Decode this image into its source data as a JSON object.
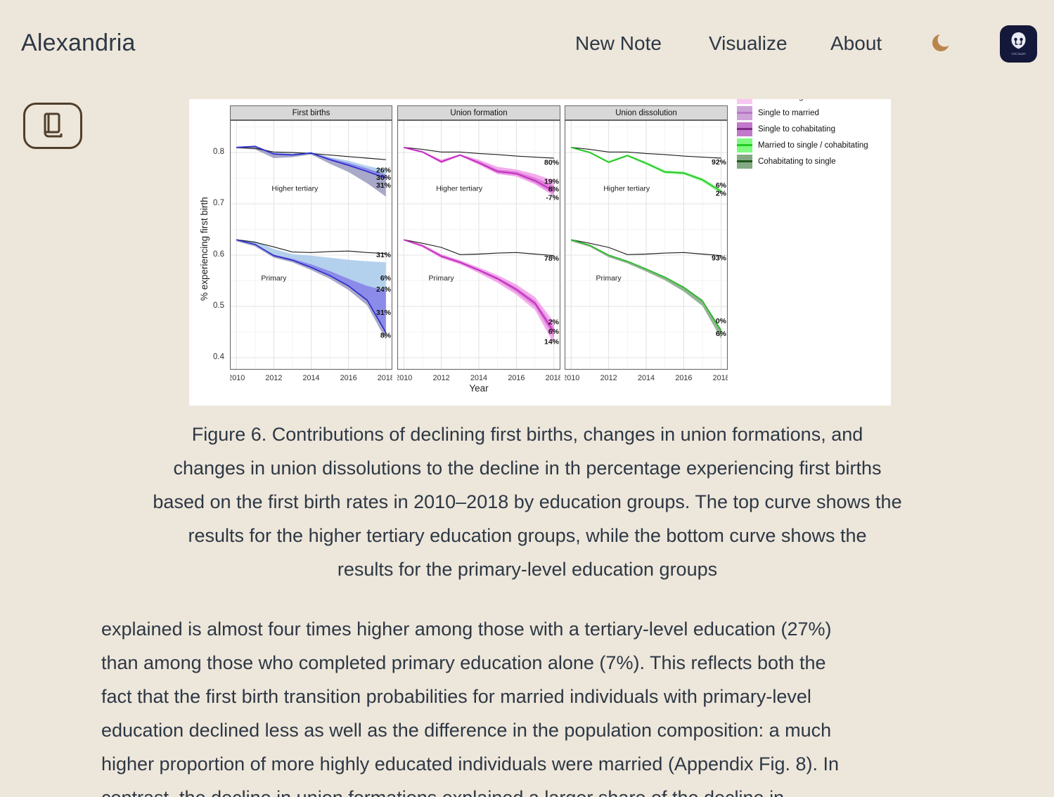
{
  "header": {
    "logo": "Alexandria",
    "nav": [
      {
        "label": "New Note"
      },
      {
        "label": "Visualize"
      },
      {
        "label": "About"
      }
    ],
    "avatar_label": "GitCitadel"
  },
  "colors": {
    "page_bg": "#EDE6DA",
    "text": "#2D3845",
    "moon": "#B9854C",
    "avatar_bg": "#14183A",
    "book_button": "#4F3F2B",
    "figure_bg": "#FFFFFF"
  },
  "caption_lines": [
    "Figure 6. Contributions of declining first births, changes in union formations, and",
    "changes in union dissolutions to the decline in th percentage experiencing first births",
    "based on the first birth rates in 2010–2018 by education groups. The top curve shows the",
    "results for the higher tertiary education groups, while the bottom curve shows the",
    "results for the primary-level education groups"
  ],
  "paragraph_lines": [
    "explained is almost four times higher among those with a tertiary-level education (27%)",
    "than among those who completed primary education alone (7%). This reflects both the",
    "fact that the first birth transition probabilities for married individuals with primary-level",
    "education declined less as well as the difference in the population composition: a much",
    "higher proportion of more highly educated individuals were married (Appendix Fig. 8). In"
  ],
  "paragraph_partial": "contrast, the decline in union formations explained a larger share of the decline in",
  "chart_data": {
    "type": "line",
    "x": [
      2010,
      2011,
      2012,
      2013,
      2014,
      2015,
      2016,
      2017,
      2018
    ],
    "x_ticks": [
      2010,
      2012,
      2014,
      2016,
      2018
    ],
    "y_ticks": [
      0.8,
      0.7,
      0.6,
      0.5,
      0.4
    ],
    "ylim": [
      0.377,
      0.863
    ],
    "ylabel": "% experiencing first birth",
    "xlabel": "Year",
    "grid": true,
    "legend_position": "top-right-outside",
    "legend": [
      {
        "label": "Cohabitating to married",
        "fill": "#F8C7F1",
        "line": "#EE86EA"
      },
      {
        "label": "Single to married",
        "fill": "#CDA4D8",
        "line": "#B978C8"
      },
      {
        "label": "Single to cohabitating",
        "fill": "#C379CB",
        "line": "#7E2D87"
      },
      {
        "label": "Married to single / cohabitating",
        "fill": "#7FF97F",
        "line": "#21CC21"
      },
      {
        "label": "Cohabitating to single",
        "fill": "#83A983",
        "line": "#1E5B1E"
      }
    ],
    "panels": [
      {
        "title": "First births",
        "groups": [
          {
            "name": "Higher tertiary",
            "label_pos": {
              "fx": 0.4,
              "v": 0.731
            },
            "black": [
              0.81,
              0.808,
              0.801,
              0.8,
              0.798,
              0.795,
              0.792,
              0.789,
              0.786
            ],
            "bands": [
              {
                "fill": "#A9CBEA",
                "upper": [
                  0.811,
                  0.813,
                  0.8,
                  0.798,
                  0.801,
                  0.791,
                  0.784,
                  0.774,
                  0.766
                ],
                "lower": [
                  0.81,
                  0.812,
                  0.799,
                  0.797,
                  0.8,
                  0.789,
                  0.78,
                  0.769,
                  0.757
                ]
              },
              {
                "fill": "#7B7BE6",
                "upper": [
                  0.81,
                  0.812,
                  0.799,
                  0.797,
                  0.8,
                  0.789,
                  0.78,
                  0.769,
                  0.757
                ],
                "lower": [
                  0.81,
                  0.812,
                  0.797,
                  0.795,
                  0.799,
                  0.786,
                  0.775,
                  0.763,
                  0.75
                ]
              },
              {
                "fill": "#9C9CC2",
                "upper": [
                  0.81,
                  0.812,
                  0.797,
                  0.795,
                  0.799,
                  0.786,
                  0.775,
                  0.763,
                  0.75
                ],
                "lower": [
                  0.808,
                  0.806,
                  0.789,
                  0.791,
                  0.796,
                  0.778,
                  0.762,
                  0.74,
                  0.714
                ]
              }
            ],
            "line": {
              "color": "#2929CC",
              "values": [
                0.81,
                0.812,
                0.797,
                0.795,
                0.799,
                0.786,
                0.775,
                0.763,
                0.75
              ]
            },
            "labels": [
              {
                "text": "26%",
                "v": 0.766
              },
              {
                "text": "30%",
                "v": 0.752
              },
              {
                "text": "31%",
                "v": 0.737
              }
            ]
          },
          {
            "name": "Primary",
            "label_pos": {
              "fx": 0.27,
              "v": 0.556
            },
            "black": [
              0.63,
              0.625,
              0.616,
              0.606,
              0.605,
              0.607,
              0.608,
              0.605,
              0.603
            ],
            "bands": [
              {
                "fill": "#A9CBEA",
                "upper": [
                  0.631,
                  0.627,
                  0.612,
                  0.602,
                  0.599,
                  0.595,
                  0.591,
                  0.588,
                  0.586
                ],
                "lower": [
                  0.629,
                  0.622,
                  0.601,
                  0.593,
                  0.582,
                  0.569,
                  0.554,
                  0.54,
                  0.531
                ]
              },
              {
                "fill": "#7B7BE6",
                "upper": [
                  0.629,
                  0.622,
                  0.601,
                  0.593,
                  0.582,
                  0.569,
                  0.554,
                  0.54,
                  0.531
                ],
                "lower": [
                  0.63,
                  0.621,
                  0.599,
                  0.59,
                  0.576,
                  0.56,
                  0.54,
                  0.512,
                  0.449
                ]
              },
              {
                "fill": "#9C9CC2",
                "upper": [
                  0.63,
                  0.621,
                  0.599,
                  0.59,
                  0.576,
                  0.56,
                  0.54,
                  0.512,
                  0.449
                ],
                "lower": [
                  0.627,
                  0.617,
                  0.595,
                  0.586,
                  0.571,
                  0.554,
                  0.532,
                  0.502,
                  0.435
                ]
              }
            ],
            "line": {
              "color": "#2929CC",
              "values": [
                0.63,
                0.621,
                0.599,
                0.59,
                0.576,
                0.56,
                0.54,
                0.512,
                0.449
              ]
            },
            "labels": [
              {
                "text": "31%",
                "v": 0.601
              },
              {
                "text": "6%",
                "v": 0.556
              },
              {
                "text": "24%",
                "v": 0.534
              },
              {
                "text": "31%",
                "v": 0.489
              },
              {
                "text": "8%",
                "v": 0.444
              }
            ]
          }
        ]
      },
      {
        "title": "Union formation",
        "groups": [
          {
            "name": "Higher tertiary",
            "label_pos": {
              "fx": 0.38,
              "v": 0.731
            },
            "black": [
              0.81,
              0.806,
              0.801,
              0.801,
              0.798,
              0.796,
              0.793,
              0.791,
              0.789
            ],
            "bands": [
              {
                "fill": "#F1A0EB",
                "upper": [
                  0.811,
                  0.803,
                  0.786,
                  0.797,
                  0.786,
                  0.772,
                  0.767,
                  0.758,
                  0.745
                ],
                "lower": [
                  0.808,
                  0.799,
                  0.779,
                  0.793,
                  0.776,
                  0.758,
                  0.753,
                  0.738,
                  0.715
                ]
              },
              {
                "fill": "#DB79D5",
                "upper": [
                  0.81,
                  0.802,
                  0.784,
                  0.796,
                  0.783,
                  0.767,
                  0.763,
                  0.751,
                  0.735
                ],
                "lower": [
                  0.809,
                  0.8,
                  0.78,
                  0.794,
                  0.778,
                  0.76,
                  0.756,
                  0.741,
                  0.719
                ]
              }
            ],
            "line": {
              "color": "#C024C0",
              "values": [
                0.81,
                0.801,
                0.782,
                0.795,
                0.78,
                0.763,
                0.759,
                0.745,
                0.725
              ]
            },
            "labels": [
              {
                "text": "80%",
                "v": 0.781
              },
              {
                "text": "19%",
                "v": 0.744
              },
              {
                "text": "8%",
                "v": 0.729
              },
              {
                "text": "-7%",
                "v": 0.713
              }
            ]
          },
          {
            "name": "Primary",
            "label_pos": {
              "fx": 0.27,
              "v": 0.556
            },
            "black": [
              0.63,
              0.623,
              0.615,
              0.601,
              0.602,
              0.604,
              0.605,
              0.602,
              0.599
            ],
            "bands": [
              {
                "fill": "#F1A0EB",
                "upper": [
                  0.631,
                  0.621,
                  0.602,
                  0.59,
                  0.576,
                  0.561,
                  0.543,
                  0.518,
                  0.47
                ],
                "lower": [
                  0.628,
                  0.615,
                  0.594,
                  0.582,
                  0.565,
                  0.546,
                  0.523,
                  0.493,
                  0.427
                ]
              },
              {
                "fill": "#DB79D5",
                "upper": [
                  0.63,
                  0.619,
                  0.6,
                  0.588,
                  0.573,
                  0.557,
                  0.537,
                  0.511,
                  0.459
                ],
                "lower": [
                  0.629,
                  0.617,
                  0.596,
                  0.584,
                  0.568,
                  0.551,
                  0.528,
                  0.5,
                  0.44
                ]
              }
            ],
            "line": {
              "color": "#C024C0",
              "values": [
                0.63,
                0.618,
                0.598,
                0.586,
                0.571,
                0.554,
                0.533,
                0.506,
                0.45
              ]
            },
            "labels": [
              {
                "text": "78%",
                "v": 0.594
              },
              {
                "text": "2%",
                "v": 0.47
              },
              {
                "text": "6%",
                "v": 0.452
              },
              {
                "text": "14%",
                "v": 0.432
              }
            ]
          }
        ]
      },
      {
        "title": "Union dissolution",
        "groups": [
          {
            "name": "Higher tertiary",
            "label_pos": {
              "fx": 0.38,
              "v": 0.731
            },
            "black": [
              0.81,
              0.806,
              0.801,
              0.801,
              0.798,
              0.796,
              0.793,
              0.791,
              0.789
            ],
            "bands": [
              {
                "fill": "#90FA90",
                "upper": [
                  0.811,
                  0.802,
                  0.784,
                  0.796,
                  0.782,
                  0.765,
                  0.763,
                  0.75,
                  0.728
                ],
                "lower": [
                  0.808,
                  0.798,
                  0.779,
                  0.792,
                  0.776,
                  0.759,
                  0.757,
                  0.743,
                  0.719
                ]
              }
            ],
            "line": {
              "color": "#22BB22",
              "values": [
                0.81,
                0.8,
                0.781,
                0.794,
                0.779,
                0.762,
                0.76,
                0.747,
                0.724
              ]
            },
            "labels": [
              {
                "text": "92%",
                "v": 0.782
              },
              {
                "text": "6%",
                "v": 0.737
              },
              {
                "text": "2%",
                "v": 0.721
              }
            ]
          },
          {
            "name": "Primary",
            "label_pos": {
              "fx": 0.27,
              "v": 0.556
            },
            "black": [
              0.63,
              0.623,
              0.615,
              0.601,
              0.602,
              0.604,
              0.605,
              0.602,
              0.599
            ],
            "bands": [
              {
                "fill": "#84AA84",
                "upper": [
                  0.631,
                  0.62,
                  0.601,
                  0.589,
                  0.574,
                  0.558,
                  0.539,
                  0.513,
                  0.456
                ],
                "lower": [
                  0.627,
                  0.616,
                  0.596,
                  0.584,
                  0.568,
                  0.551,
                  0.529,
                  0.501,
                  0.437
                ]
              }
            ],
            "line": {
              "color": "#22BB22",
              "values": [
                0.63,
                0.619,
                0.6,
                0.588,
                0.573,
                0.557,
                0.537,
                0.511,
                0.452
              ]
            },
            "labels": [
              {
                "text": "93%",
                "v": 0.595
              },
              {
                "text": "0%",
                "v": 0.472
              },
              {
                "text": "6%",
                "v": 0.448
              }
            ]
          }
        ]
      }
    ]
  }
}
